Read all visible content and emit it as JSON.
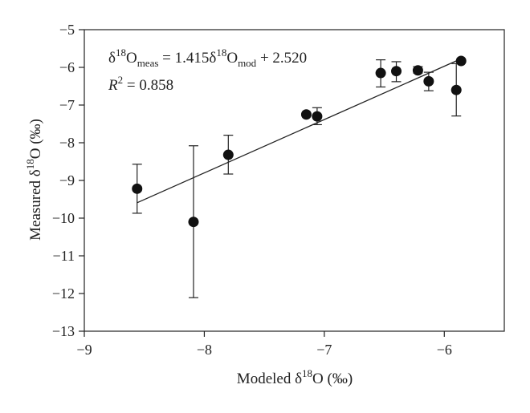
{
  "chart_data": {
    "type": "scatter",
    "title": "",
    "xlabel": {
      "prefix": "Modeled δ",
      "sup": "18",
      "suffix": "O (‰)"
    },
    "ylabel": {
      "prefix": "Measured δ",
      "sup": "18",
      "suffix": "O (‰)"
    },
    "xlim": [
      -9,
      -5.5
    ],
    "ylim": [
      -13,
      -5
    ],
    "xticks": [
      -9,
      -8,
      -7,
      -6
    ],
    "xtick_labels": [
      "−9",
      "−8",
      "−7",
      "−6"
    ],
    "yticks": [
      -13,
      -12,
      -11,
      -10,
      -9,
      -8,
      -7,
      -6,
      -5
    ],
    "ytick_labels": [
      "−13",
      "−12",
      "−11",
      "−10",
      "−9",
      "−8",
      "−7",
      "−6",
      "−5"
    ],
    "grid": false,
    "legend": "none",
    "series": [
      {
        "points": [
          {
            "x": -8.56,
            "y": -9.22,
            "err_low": -9.87,
            "err_high": -8.57
          },
          {
            "x": -8.09,
            "y": -10.1,
            "err_low": -12.11,
            "err_high": -8.08
          },
          {
            "x": -7.8,
            "y": -8.32,
            "err_low": -8.83,
            "err_high": -7.8
          },
          {
            "x": -7.15,
            "y": -7.25,
            "err_low": -7.29,
            "err_high": -7.21
          },
          {
            "x": -7.06,
            "y": -7.3,
            "err_low": -7.52,
            "err_high": -7.07
          },
          {
            "x": -6.53,
            "y": -6.15,
            "err_low": -6.52,
            "err_high": -5.8
          },
          {
            "x": -6.4,
            "y": -6.1,
            "err_low": -6.38,
            "err_high": -5.85
          },
          {
            "x": -6.22,
            "y": -6.08,
            "err_low": -6.15,
            "err_high": -5.98
          },
          {
            "x": -6.13,
            "y": -6.37,
            "err_low": -6.62,
            "err_high": -6.13
          },
          {
            "x": -5.9,
            "y": -6.6,
            "err_low": -7.29,
            "err_high": -5.9
          },
          {
            "x": -5.86,
            "y": -5.83,
            "err_low": -5.83,
            "err_high": -5.83
          }
        ],
        "color": "#111111"
      }
    ],
    "fit_line": {
      "x_start": -8.56,
      "x_end": -5.86,
      "slope": 1.415,
      "intercept": 2.52
    },
    "annotation": {
      "equation": {
        "d1": "δ",
        "s1": "18",
        "o1": "O",
        "sub1": "meas",
        "mid": " = 1.415δ",
        "s2": "18",
        "o2": "O",
        "sub2": "mod",
        "tail": " + 2.520"
      },
      "r2": {
        "label": "R",
        "sup": "2",
        "value": " = 0.858"
      }
    }
  }
}
